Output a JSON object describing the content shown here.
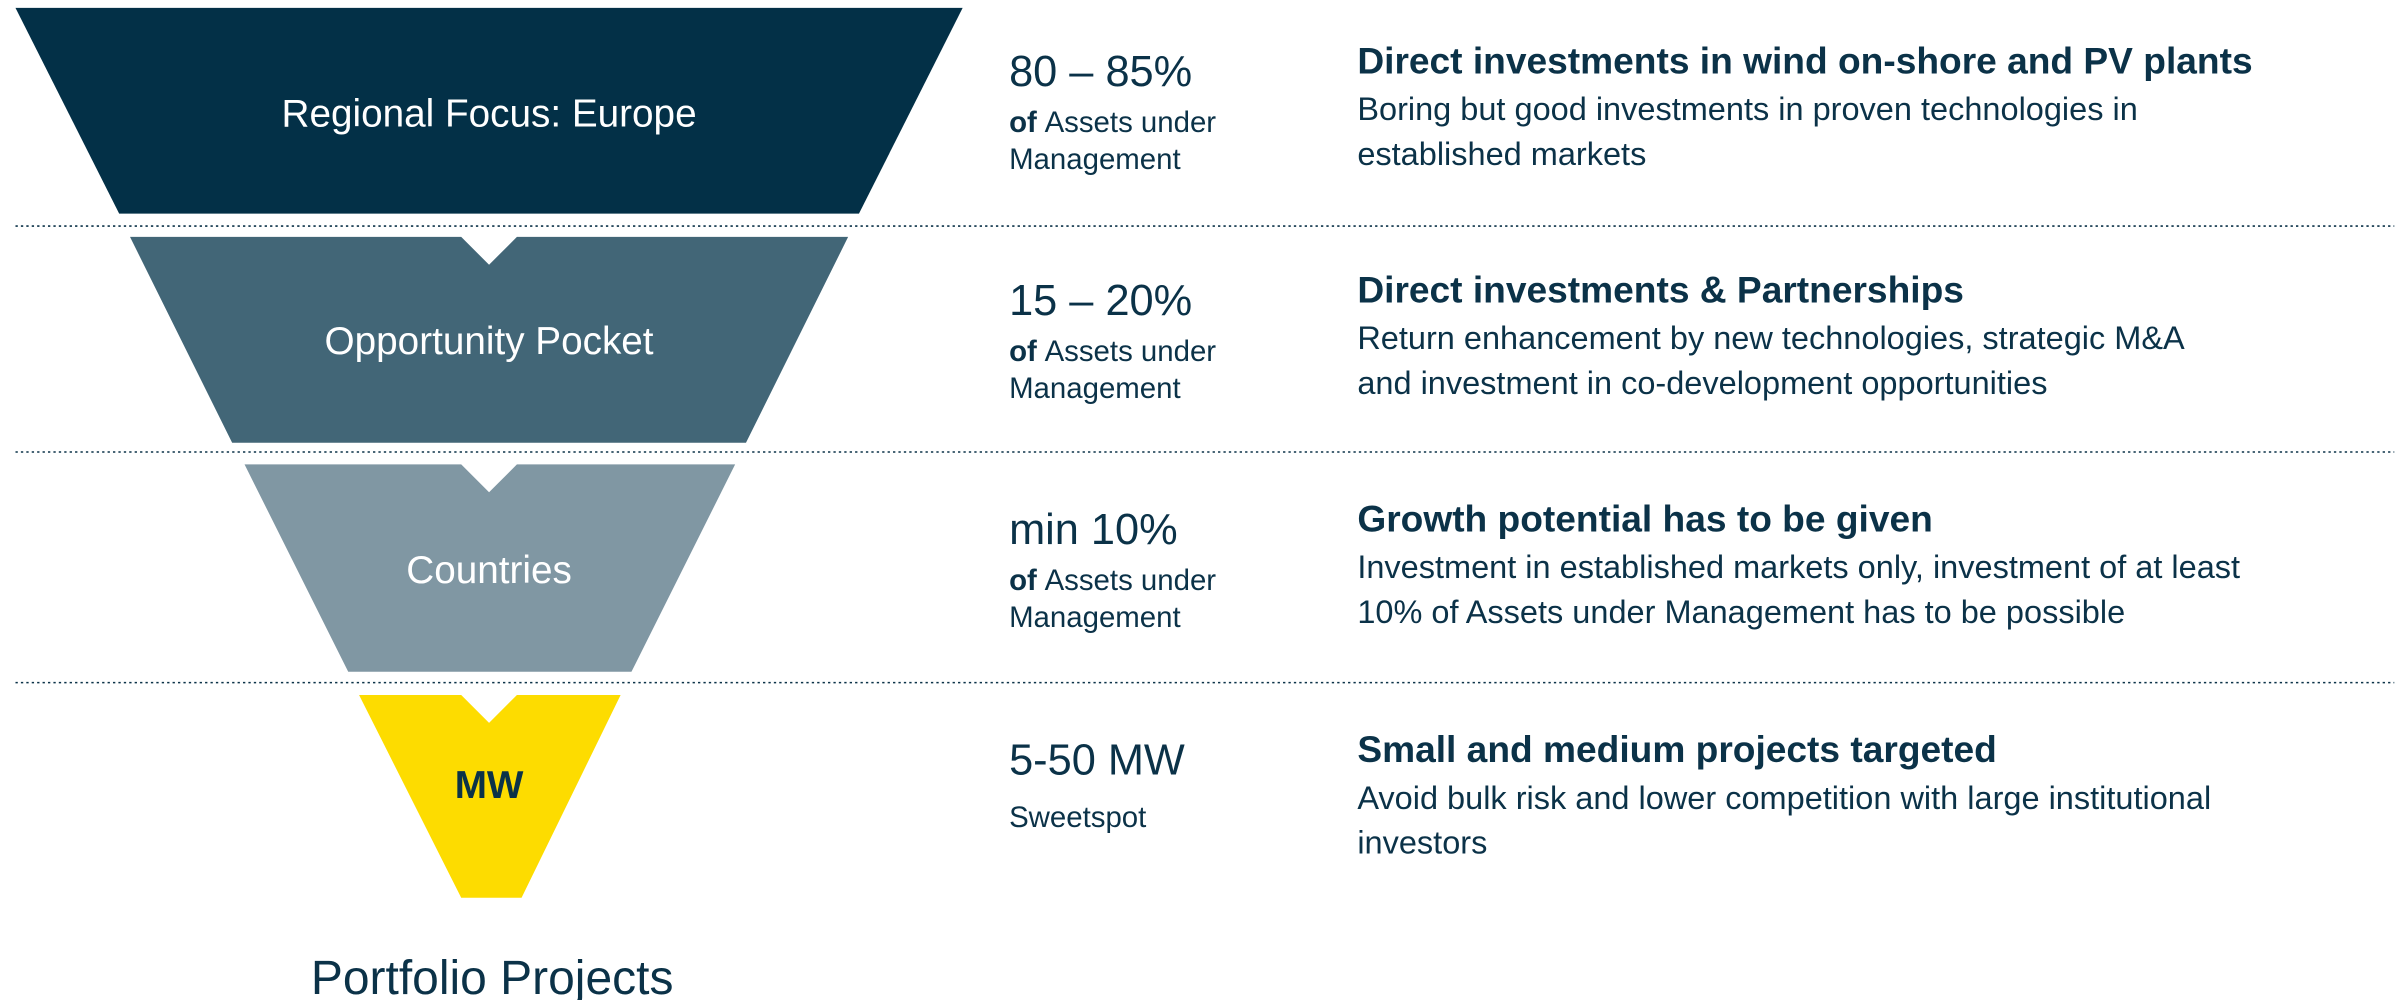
{
  "levels": [
    {
      "label": "Regional Focus: Europe",
      "metric": "80 – 85%",
      "sub_bold": "of",
      "sub_lines": [
        "Assets under",
        "Management"
      ],
      "heading": "Direct investments in wind on-shore and PV plants",
      "description": [
        "Boring but good investments in proven technologies in",
        "established markets"
      ]
    },
    {
      "label": "Opportunity Pocket",
      "metric": "15 – 20%",
      "sub_bold": "of",
      "sub_lines": [
        "Assets under",
        "Management"
      ],
      "heading": "Direct investments & Partnerships",
      "description": [
        "Return enhancement by new technologies, strategic M&A",
        "and investment in co-development opportunities"
      ]
    },
    {
      "label": "Countries",
      "metric": "min 10%",
      "sub_bold": "of",
      "sub_lines": [
        "Assets under",
        "Management"
      ],
      "heading": "Growth potential has to be given",
      "description": [
        "Investment in established markets only, investment of at least",
        "10% of Assets under Management has to be possible"
      ]
    },
    {
      "label": "MW",
      "metric": "5-50 MW",
      "sub_lines": [
        "Sweetspot"
      ],
      "heading": "Small and medium projects targeted",
      "description": [
        "Avoid bulk risk and lower competition with large institutional",
        "investors"
      ]
    }
  ],
  "footer": "Portfolio Projects"
}
